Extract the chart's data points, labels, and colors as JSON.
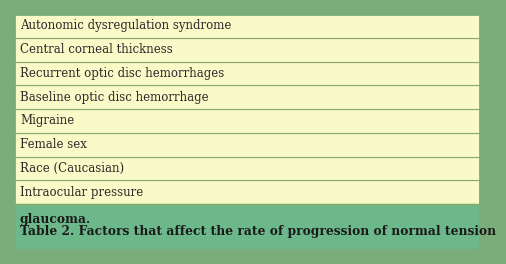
{
  "title_line1": "Table 2. Factors that affect the rate of progression of normal tension",
  "title_line2": "glaucoma.",
  "rows": [
    "Intraocular pressure",
    "Race (Caucasian)",
    "Female sex",
    "Migraine",
    "Baseline optic disc hemorrhage",
    "Recurrent optic disc hemorrhages",
    "Central corneal thickness",
    "Autonomic dysregulation syndrome"
  ],
  "header_bg": "#6db88a",
  "row_bg": "#fafac8",
  "outer_border_color": "#7aad7a",
  "row_border_color": "#8aaa6a",
  "title_color": "#1a1a1a",
  "row_text_color": "#2a2a2a",
  "title_fontsize": 8.8,
  "row_fontsize": 8.5,
  "fig_bg": "#7aad7a"
}
